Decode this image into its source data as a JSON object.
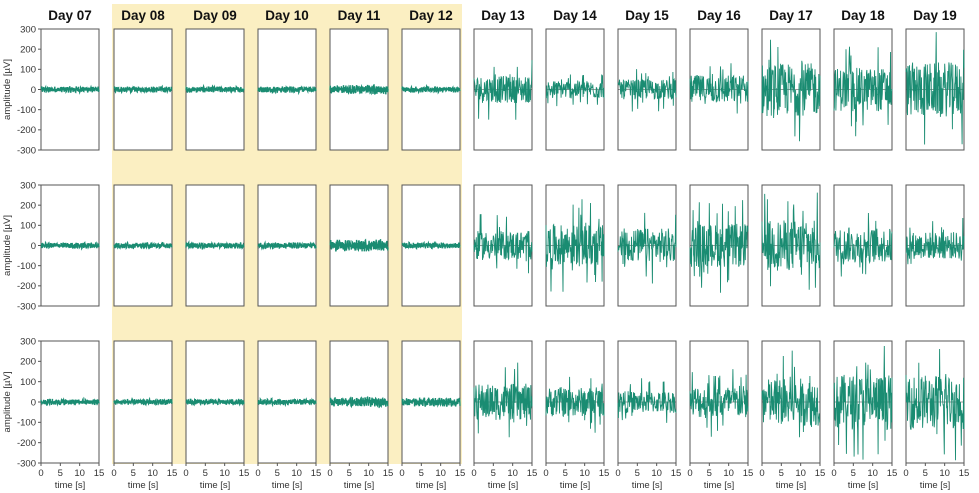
{
  "chart_data": {
    "type": "line",
    "days": [
      "Day 07",
      "Day 08",
      "Day 09",
      "Day 10",
      "Day 11",
      "Day 12",
      "Day 13",
      "Day 14",
      "Day 15",
      "Day 16",
      "Day 17",
      "Day 18",
      "Day 19"
    ],
    "highlighted_days": [
      "Day 08",
      "Day 09",
      "Day 10",
      "Day 11",
      "Day 12"
    ],
    "rows": 3,
    "ylabel": "amplitude [µV]",
    "xlabel": "time [s]",
    "ylim": [
      -300,
      300
    ],
    "xlim": [
      0,
      15
    ],
    "yticks": [
      "300",
      "200",
      "100",
      "0",
      "-100",
      "-200",
      "-300"
    ],
    "xticks": [
      "0",
      "5",
      "10",
      "15"
    ],
    "approx_peak_amplitude_uv": [
      [
        20,
        20,
        20,
        20,
        30,
        20,
        150,
        100,
        110,
        160,
        290,
        240,
        300
      ],
      [
        20,
        20,
        20,
        20,
        40,
        20,
        160,
        230,
        190,
        240,
        280,
        190,
        150
      ],
      [
        20,
        20,
        20,
        20,
        30,
        30,
        200,
        160,
        120,
        180,
        260,
        300,
        300
      ]
    ],
    "grid": false,
    "colors": {
      "trace": "#1a8c72",
      "highlight": "#fbefc2",
      "axis": "#555555",
      "zero_line": "#333333"
    }
  }
}
